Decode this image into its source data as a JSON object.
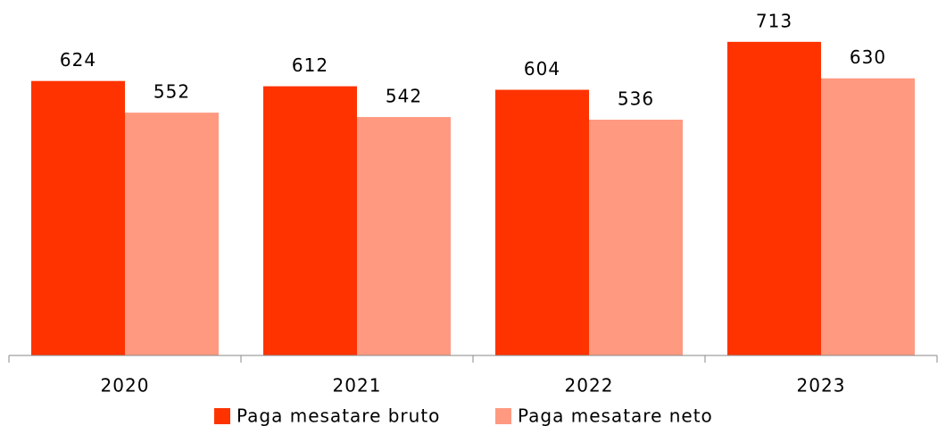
{
  "chart_data": {
    "type": "bar",
    "categories": [
      "2020",
      "2021",
      "2022",
      "2023"
    ],
    "series": [
      {
        "name": "Paga mesatare bruto",
        "color": "#ff3300",
        "values": [
          624,
          612,
          604,
          713
        ]
      },
      {
        "name": "Paga mesatare neto",
        "color": "#ff9980",
        "values": [
          552,
          542,
          536,
          630
        ]
      }
    ],
    "ylim": [
      0,
      800
    ]
  }
}
